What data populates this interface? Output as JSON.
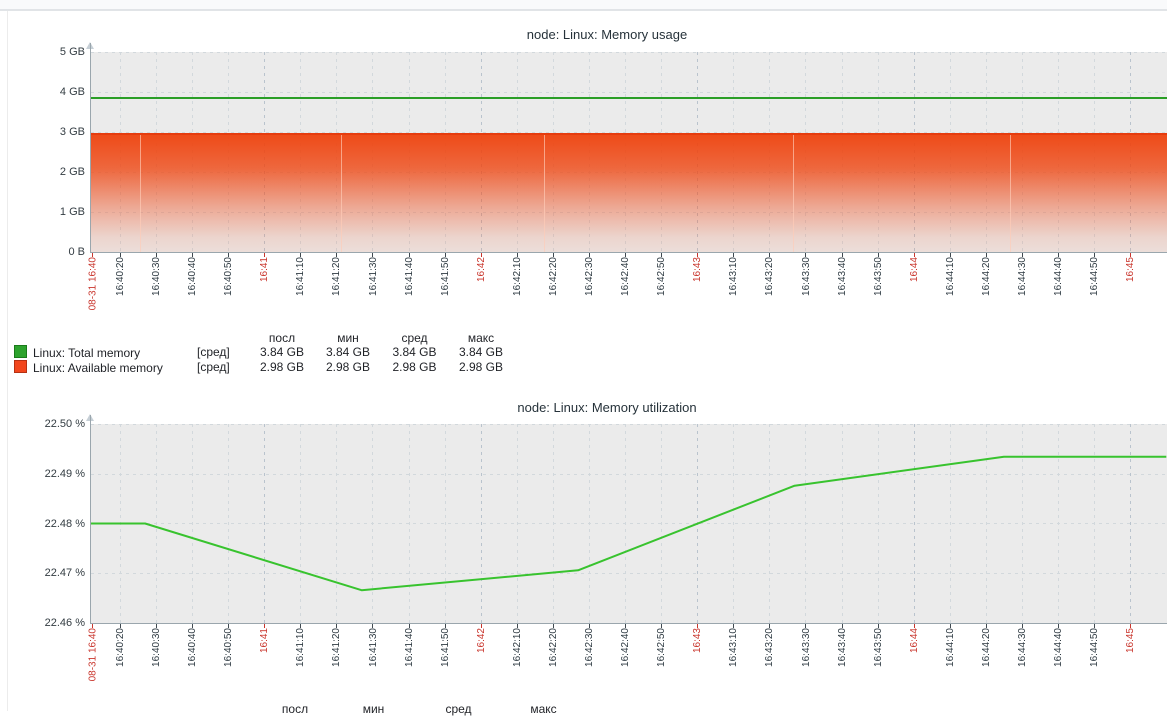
{
  "time_axis": {
    "labels": [
      {
        "text": "08-31 16:40",
        "s": 0,
        "red": true
      },
      {
        "text": "16:40:20",
        "s": 20
      },
      {
        "text": "16:40:30",
        "s": 30
      },
      {
        "text": "16:40:40",
        "s": 40
      },
      {
        "text": "16:40:50",
        "s": 50
      },
      {
        "text": "16:41",
        "s": 60,
        "red": true
      },
      {
        "text": "16:41:10",
        "s": 70
      },
      {
        "text": "16:41:20",
        "s": 80
      },
      {
        "text": "16:41:30",
        "s": 90
      },
      {
        "text": "16:41:40",
        "s": 100
      },
      {
        "text": "16:41:50",
        "s": 110
      },
      {
        "text": "16:42",
        "s": 120,
        "red": true
      },
      {
        "text": "16:42:10",
        "s": 130
      },
      {
        "text": "16:42:20",
        "s": 140
      },
      {
        "text": "16:42:30",
        "s": 150
      },
      {
        "text": "16:42:40",
        "s": 160
      },
      {
        "text": "16:42:50",
        "s": 170
      },
      {
        "text": "16:43",
        "s": 180,
        "red": true
      },
      {
        "text": "16:43:10",
        "s": 190
      },
      {
        "text": "16:43:20",
        "s": 200
      },
      {
        "text": "16:43:30",
        "s": 210
      },
      {
        "text": "16:43:40",
        "s": 220
      },
      {
        "text": "16:43:50",
        "s": 230
      },
      {
        "text": "16:44",
        "s": 240,
        "red": true
      },
      {
        "text": "16:44:10",
        "s": 250
      },
      {
        "text": "16:44:20",
        "s": 260
      },
      {
        "text": "16:44:30",
        "s": 270
      },
      {
        "text": "16:44:40",
        "s": 280
      },
      {
        "text": "16:44:50",
        "s": 290
      },
      {
        "text": "16:45",
        "s": 300,
        "red": true
      }
    ]
  },
  "charts": [
    {
      "title": "node: Linux: Memory usage",
      "y_labels": [
        "5 GB",
        "4 GB",
        "3 GB",
        "2 GB",
        "1 GB",
        "0 B"
      ],
      "legend": {
        "headers": [
          "посл",
          "мин",
          "сред",
          "макс"
        ],
        "rows": [
          {
            "label": "Linux: Total memory",
            "func": "[сред]",
            "color": "#2da32d",
            "border": "#1a7a1a",
            "values": [
              "3.84 GB",
              "3.84 GB",
              "3.84 GB",
              "3.84 GB"
            ]
          },
          {
            "label": "Linux: Available memory",
            "func": "[сред]",
            "color": "#f2461d",
            "border": "#b53113",
            "values": [
              "2.98 GB",
              "2.98 GB",
              "2.98 GB",
              "2.98 GB"
            ]
          }
        ]
      }
    },
    {
      "title": "node: Linux: Memory utilization",
      "y_labels": [
        "22.50 %",
        "22.49 %",
        "22.48 %",
        "22.47 %",
        "22.46 %"
      ],
      "legend": {
        "headers": [
          "посл",
          "мин",
          "сред",
          "макс"
        ],
        "rows": []
      }
    }
  ],
  "chart_data": [
    {
      "type": "area",
      "title": "node: Linux: Memory usage",
      "ylim": [
        "0 B",
        "5 GB"
      ],
      "x_range": [
        "08-31 16:40",
        "16:45"
      ],
      "x_tick_interval_s": 10,
      "grid": true,
      "legend_position": "bottom",
      "series": [
        {
          "name": "Linux: Total memory",
          "style": "line",
          "color": "#2a9e26",
          "unit": "GB",
          "value_constant_gb": 3.84,
          "stats": {
            "посл": "3.84 GB",
            "мин": "3.84 GB",
            "сред": "3.84 GB",
            "макс": "3.84 GB"
          }
        },
        {
          "name": "Linux: Available memory",
          "style": "gradient-area",
          "color": "#ef4a19",
          "unit": "GB",
          "value_constant_gb": 2.98,
          "stats": {
            "посл": "2.98 GB",
            "мин": "2.98 GB",
            "сред": "2.98 GB",
            "макс": "2.98 GB"
          }
        }
      ]
    },
    {
      "type": "line",
      "title": "node: Linux: Memory utilization",
      "ylim": [
        22.46,
        22.5
      ],
      "unit": "%",
      "x_range": [
        "08-31 16:40",
        "16:45"
      ],
      "x_tick_interval_s": 10,
      "grid": true,
      "series_name": "Linux: Memory utilization",
      "color": "#38c32e",
      "points": [
        {
          "time": "16:40:12",
          "s": 12,
          "value": 22.48
        },
        {
          "time": "16:40:27",
          "s": 27,
          "value": 22.48
        },
        {
          "time": "16:41:27",
          "s": 87,
          "value": 22.4666
        },
        {
          "time": "16:42:27",
          "s": 147,
          "value": 22.4706
        },
        {
          "time": "16:43:27",
          "s": 207,
          "value": 22.4876
        },
        {
          "time": "16:44:25",
          "s": 265,
          "value": 22.4934
        },
        {
          "time": "16:45:10",
          "s": 310,
          "value": 22.4934
        }
      ]
    }
  ]
}
